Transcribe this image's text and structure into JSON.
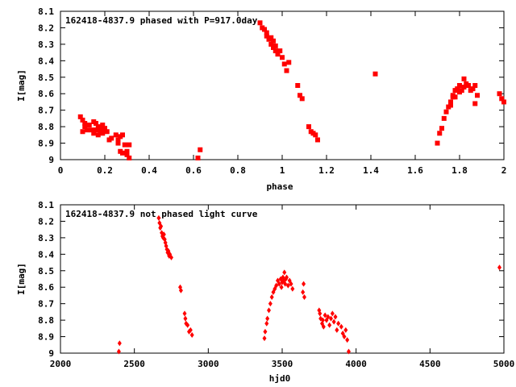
{
  "chart_data": [
    {
      "type": "scatter",
      "title": "162418-4837.9 phased with P=917.0day",
      "xlabel": "phase",
      "ylabel": "I[mag]",
      "xlim": [
        0,
        2
      ],
      "ylim": [
        8.1,
        9
      ],
      "y_inverted": true,
      "grid": false,
      "x_ticks": [
        "0",
        "0.2",
        "0.4",
        "0.6",
        "0.8",
        "1",
        "1.2",
        "1.4",
        "1.6",
        "1.8",
        "2"
      ],
      "y_ticks": [
        "8.1",
        "8.2",
        "8.3",
        "8.4",
        "8.5",
        "8.6",
        "8.7",
        "8.8",
        "8.9",
        "9"
      ],
      "marker_color": "#ff0000",
      "series": [
        {
          "x": [
            0.09,
            0.1,
            0.1,
            0.11,
            0.11,
            0.12,
            0.13,
            0.14,
            0.15,
            0.15,
            0.16,
            0.16,
            0.17,
            0.17,
            0.18,
            0.18,
            0.19,
            0.19,
            0.2,
            0.2,
            0.21,
            0.22,
            0.23,
            0.25,
            0.26,
            0.26,
            0.27,
            0.27,
            0.28,
            0.28,
            0.29,
            0.3,
            0.3,
            0.31,
            0.31,
            0.62,
            0.63,
            0.9,
            0.91,
            0.92,
            0.93,
            0.93,
            0.94,
            0.95,
            0.95,
            0.96,
            0.96,
            0.97,
            0.97,
            0.98,
            0.99,
            1.0,
            1.01,
            1.02,
            1.03,
            1.07,
            1.08,
            1.09,
            1.12,
            1.13,
            1.14,
            1.15,
            1.16,
            1.42,
            1.7,
            1.71,
            1.72,
            1.73,
            1.74,
            1.75,
            1.76,
            1.76,
            1.77,
            1.77,
            1.78,
            1.78,
            1.79,
            1.8,
            1.8,
            1.81,
            1.82,
            1.82,
            1.83,
            1.84,
            1.85,
            1.86,
            1.87,
            1.87,
            1.88,
            1.98,
            1.99,
            2.0
          ],
          "y": [
            8.74,
            8.76,
            8.83,
            8.78,
            8.8,
            8.82,
            8.79,
            8.82,
            8.77,
            8.84,
            8.78,
            8.82,
            8.8,
            8.85,
            8.81,
            8.83,
            8.79,
            8.84,
            8.81,
            8.82,
            8.83,
            8.88,
            8.87,
            8.85,
            8.88,
            8.9,
            8.86,
            8.95,
            8.85,
            8.96,
            8.91,
            8.95,
            8.97,
            8.99,
            8.91,
            8.99,
            8.94,
            8.17,
            8.2,
            8.21,
            8.23,
            8.25,
            8.27,
            8.26,
            8.3,
            8.28,
            8.32,
            8.31,
            8.34,
            8.36,
            8.34,
            8.38,
            8.42,
            8.46,
            8.41,
            8.55,
            8.61,
            8.63,
            8.8,
            8.83,
            8.84,
            8.85,
            8.88,
            8.48,
            8.9,
            8.84,
            8.81,
            8.75,
            8.71,
            8.68,
            8.65,
            8.67,
            8.62,
            8.61,
            8.58,
            8.62,
            8.57,
            8.59,
            8.55,
            8.58,
            8.51,
            8.56,
            8.54,
            8.55,
            8.58,
            8.57,
            8.55,
            8.66,
            8.61,
            8.6,
            8.63,
            8.65
          ]
        }
      ]
    },
    {
      "type": "scatter",
      "title": "162418-4837.9 not phased light curve",
      "xlabel": "hjd0",
      "ylabel": "I[mag]",
      "xlim": [
        2000,
        5000
      ],
      "ylim": [
        8.1,
        9
      ],
      "y_inverted": true,
      "grid": false,
      "x_ticks": [
        "2000",
        "2500",
        "3000",
        "3500",
        "4000",
        "4500",
        "5000"
      ],
      "y_ticks": [
        "8.1",
        "8.2",
        "8.3",
        "8.4",
        "8.5",
        "8.6",
        "8.7",
        "8.8",
        "8.9",
        "9"
      ],
      "marker_color": "#ff0000",
      "series": [
        {
          "x": [
            2395,
            2400,
            2665,
            2670,
            2675,
            2680,
            2685,
            2690,
            2695,
            2700,
            2705,
            2710,
            2715,
            2720,
            2725,
            2730,
            2735,
            2740,
            2750,
            2810,
            2815,
            2840,
            2845,
            2850,
            2860,
            2870,
            2880,
            2890,
            3380,
            3385,
            3395,
            3400,
            3410,
            3420,
            3430,
            3440,
            3450,
            3460,
            3470,
            3480,
            3490,
            3495,
            3500,
            3505,
            3510,
            3515,
            3520,
            3525,
            3530,
            3540,
            3550,
            3560,
            3570,
            3640,
            3645,
            3650,
            3750,
            3755,
            3760,
            3770,
            3775,
            3780,
            3790,
            3800,
            3810,
            3820,
            3830,
            3840,
            3850,
            3860,
            3870,
            3880,
            3900,
            3910,
            3920,
            3930,
            3940,
            3950,
            4970
          ],
          "y": [
            8.99,
            8.94,
            8.18,
            8.21,
            8.24,
            8.23,
            8.27,
            8.29,
            8.3,
            8.28,
            8.31,
            8.33,
            8.35,
            8.37,
            8.39,
            8.38,
            8.41,
            8.4,
            8.42,
            8.6,
            8.62,
            8.76,
            8.79,
            8.82,
            8.83,
            8.87,
            8.86,
            8.89,
            8.91,
            8.87,
            8.82,
            8.79,
            8.74,
            8.7,
            8.66,
            8.63,
            8.61,
            8.59,
            8.56,
            8.58,
            8.55,
            8.6,
            8.57,
            8.54,
            8.56,
            8.51,
            8.58,
            8.55,
            8.54,
            8.59,
            8.56,
            8.58,
            8.61,
            8.63,
            8.58,
            8.66,
            8.74,
            8.76,
            8.79,
            8.82,
            8.8,
            8.84,
            8.77,
            8.8,
            8.78,
            8.83,
            8.79,
            8.76,
            8.81,
            8.78,
            8.86,
            8.82,
            8.84,
            8.88,
            8.9,
            8.86,
            8.92,
            8.99,
            8.48
          ]
        }
      ]
    }
  ]
}
